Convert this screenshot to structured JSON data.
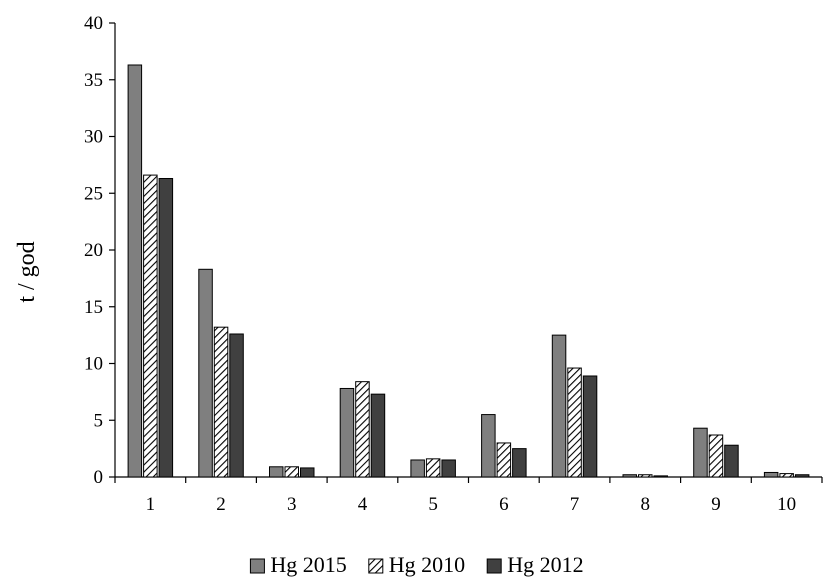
{
  "chart_data": {
    "type": "bar",
    "title": "",
    "xlabel": "",
    "ylabel": "t / god",
    "categories": [
      "1",
      "2",
      "3",
      "4",
      "5",
      "6",
      "7",
      "8",
      "9",
      "10"
    ],
    "ylim": [
      0,
      40
    ],
    "yticks": [
      "0",
      "5",
      "10",
      "15",
      "20",
      "25",
      "30",
      "35",
      "40"
    ],
    "grid": false,
    "legend_position": "bottom",
    "series": [
      {
        "name": "Hg 2015",
        "color": "#7f7f7f",
        "pattern": "solid-gray",
        "values": [
          36.3,
          18.3,
          0.9,
          7.8,
          1.5,
          5.5,
          12.5,
          0.2,
          4.3,
          0.4
        ]
      },
      {
        "name": "Hg 2010",
        "color": "#ffffff",
        "pattern": "diagonal-hatch",
        "values": [
          26.6,
          13.2,
          0.9,
          8.4,
          1.6,
          3.0,
          9.6,
          0.2,
          3.7,
          0.3
        ]
      },
      {
        "name": "Hg 2012",
        "color": "#404040",
        "pattern": "solid-dark",
        "values": [
          26.3,
          12.6,
          0.8,
          7.3,
          1.5,
          2.5,
          8.9,
          0.1,
          2.8,
          0.2
        ]
      }
    ]
  }
}
